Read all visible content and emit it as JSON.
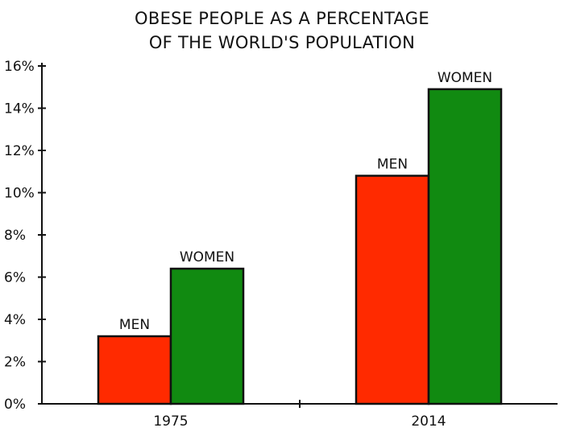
{
  "chart_data": {
    "type": "bar",
    "title_lines": [
      "OBESE PEOPLE AS A PERCENTAGE",
      "OF THE WORLD'S POPULATION"
    ],
    "categories": [
      "1975",
      "2014"
    ],
    "series": [
      {
        "name": "MEN",
        "values": [
          3.2,
          10.8
        ],
        "color": "#ff2a00"
      },
      {
        "name": "WOMEN",
        "values": [
          6.4,
          14.9
        ],
        "color": "#118a11"
      }
    ],
    "yticks": [
      "0%",
      "2%",
      "4%",
      "6%",
      "8%",
      "10%",
      "12%",
      "14%",
      "16%"
    ],
    "ylim": [
      0,
      16
    ],
    "grid": false,
    "legend": "none"
  }
}
